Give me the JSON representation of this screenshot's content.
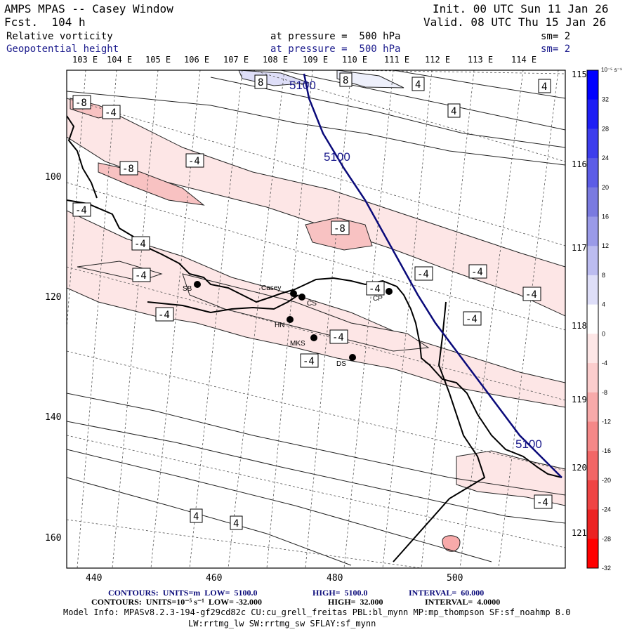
{
  "header": {
    "title": "AMPS MPAS -- Casey Window",
    "forecast": "Fcst.  104 h",
    "init": "Init. 00 UTC Sun 11 Jan 26",
    "valid": "Valid. 08 UTC Thu 15 Jan 26",
    "field1": {
      "name": "Relative vorticity",
      "level": "at pressure =  500 hPa",
      "sm": "sm= 2"
    },
    "field2": {
      "name": "Geopotential height",
      "level": "at pressure =  500 hPa",
      "sm": "sm= 2"
    }
  },
  "longitude_labels_top": [
    "103 E",
    "104 E",
    "105 E",
    "106 E",
    "107 E",
    "108 E",
    "109 E",
    "110 E",
    "111 E",
    "112 E",
    "113 E",
    "114 E"
  ],
  "longitude_labels_right": [
    "115 E",
    "116 E",
    "117 E",
    "118 E",
    "119 E",
    "120 E",
    "121 E"
  ],
  "x_ticks": [
    "440",
    "460",
    "480",
    "500"
  ],
  "y_ticks": [
    "100",
    "120",
    "140",
    "160"
  ],
  "colorbar": {
    "unit_label": "10⁻⁵ s⁻¹",
    "labels": [
      "32",
      "28",
      "24",
      "20",
      "16",
      "12",
      "8",
      "4",
      "0",
      "-4",
      "-8",
      "-12",
      "-16",
      "-20",
      "-24",
      "-28",
      "-32"
    ],
    "colors": [
      "#0000ff",
      "#1e1ef5",
      "#3d3ded",
      "#5c5ce6",
      "#7a7ae0",
      "#9a9ae8",
      "#bcbcf0",
      "#dedef8",
      "#ffffff",
      "#fde6e6",
      "#fbcdcd",
      "#f8aaaa",
      "#f58888",
      "#f26666",
      "#ef4444",
      "#ec2222",
      "#ff0000"
    ]
  },
  "stations": [
    {
      "name": "SB"
    },
    {
      "name": "Casey"
    },
    {
      "name": "CS"
    },
    {
      "name": "CP"
    },
    {
      "name": "HN"
    },
    {
      "name": "MKS"
    },
    {
      "name": "DS"
    }
  ],
  "contour_labels_vort": [
    "8",
    "8",
    "4",
    "4",
    "4",
    "-8",
    "-4",
    "-4",
    "-8",
    "-4",
    "-8",
    "-4",
    "-4",
    "-4",
    "-4",
    "-4",
    "-4",
    "-4",
    "-4",
    "-4",
    "4",
    "4"
  ],
  "contour_labels_height": [
    "5100",
    "5100",
    "5100"
  ],
  "footer": {
    "line1_a": "CONTOURS:  UNITS=m  LOW=  5100.0",
    "line1_b": "HIGH=  5100.0",
    "line1_c": "INTERVAL=  60.000",
    "line2_a": "CONTOURS:  UNITS=10⁻⁵ s⁻¹  LOW= -32.000",
    "line2_b": "HIGH=  32.000",
    "line2_c": "INTERVAL=  4.0000",
    "line3": "Model Info: MPASv8.2.3-194-gf29cd82c CU:cu_grell_freitas PBL:bl_mynn MP:mp_thompson SF:sf_noahmp 8.0",
    "line4": "LW:rrtmg_lw SW:rrtmg_sw SFLAY:sf_mynn"
  }
}
